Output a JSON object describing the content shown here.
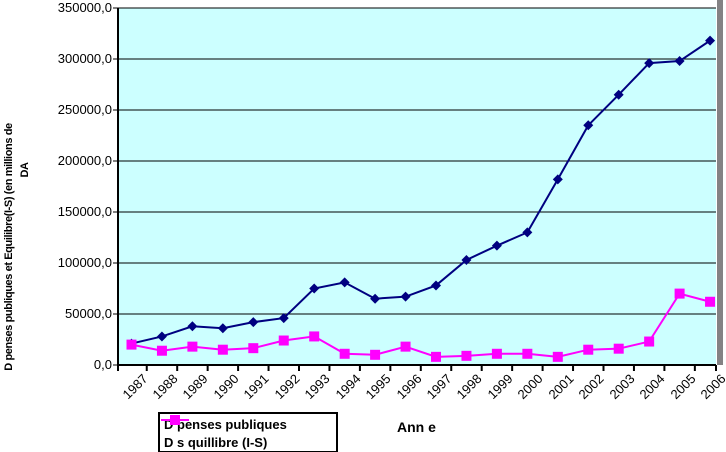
{
  "chart_data": {
    "type": "line",
    "title": "",
    "xlabel": "Ann e",
    "ylabel_line1": "D penses publiques et Equilibre(I-S) (en millions de",
    "ylabel_line2": "DA",
    "categories": [
      "1987",
      "1988",
      "1989",
      "1990",
      "1991",
      "1992",
      "1993",
      "1994",
      "1995",
      "1996",
      "1997",
      "1998",
      "1999",
      "2000",
      "2001",
      "2002",
      "2003",
      "2004",
      "2005",
      "2006"
    ],
    "y_tick_labels": [
      "0,0",
      "50000,0",
      "100000,0",
      "150000,0",
      "200000,0",
      "250000,0",
      "300000,0",
      "350000,0"
    ],
    "y_tick_values": [
      0,
      50000,
      100000,
      150000,
      200000,
      250000,
      300000,
      350000
    ],
    "ylim": [
      0,
      350000
    ],
    "grid": true,
    "legend_position": "bottom-left",
    "series": [
      {
        "name": "D penses publiques",
        "color": "#000080",
        "marker": "diamond",
        "values": [
          21000,
          28000,
          38000,
          36000,
          42000,
          46000,
          75000,
          81000,
          65000,
          67000,
          78000,
          103000,
          117000,
          130000,
          182000,
          235000,
          265000,
          296000,
          298000,
          318000
        ]
      },
      {
        "name": "D s quillibre (I-S)",
        "color": "#FF00FF",
        "marker": "square",
        "values": [
          20000,
          14000,
          18000,
          15000,
          16500,
          24000,
          28000,
          11000,
          10000,
          18000,
          8000,
          9000,
          11000,
          11000,
          8000,
          15000,
          16000,
          23000,
          70000,
          62000
        ]
      }
    ],
    "colors": {
      "plot_bg": "#CCFFFF",
      "gridline": "#000000",
      "axis": "#000000",
      "right_border_strip": "#848284"
    }
  }
}
